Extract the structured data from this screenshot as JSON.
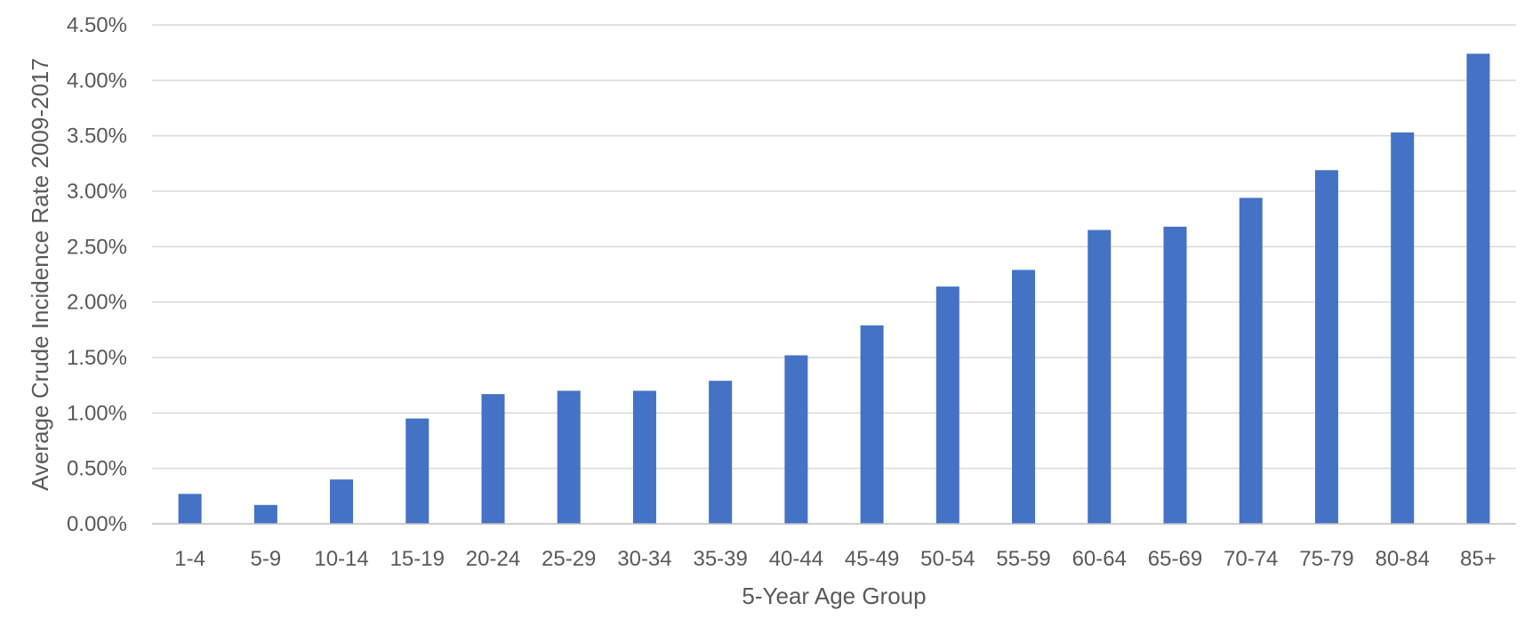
{
  "chart_data": {
    "type": "bar",
    "title": "",
    "xlabel": "5-Year Age Group",
    "ylabel": "Average Crude Incidence Rate 2009-2017",
    "categories": [
      "1-4",
      "5-9",
      "10-14",
      "15-19",
      "20-24",
      "25-29",
      "30-34",
      "35-39",
      "40-44",
      "45-49",
      "50-54",
      "55-59",
      "60-64",
      "65-69",
      "70-74",
      "75-79",
      "80-84",
      "85+"
    ],
    "values": [
      0.27,
      0.17,
      0.4,
      0.95,
      1.17,
      1.2,
      1.2,
      1.29,
      1.52,
      1.79,
      2.14,
      2.29,
      2.65,
      2.68,
      2.94,
      3.19,
      3.53,
      4.24
    ],
    "value_unit": "%",
    "ylim": [
      0,
      4.5
    ],
    "yticks": [
      0,
      0.5,
      1.0,
      1.5,
      2.0,
      2.5,
      3.0,
      3.5,
      4.0,
      4.5
    ],
    "ytick_labels": [
      "0.00%",
      "0.50%",
      "1.00%",
      "1.50%",
      "2.00%",
      "2.50%",
      "3.00%",
      "3.50%",
      "4.00%",
      "4.50%"
    ],
    "grid": true,
    "legend": "none",
    "bar_color": "#4472c4"
  }
}
